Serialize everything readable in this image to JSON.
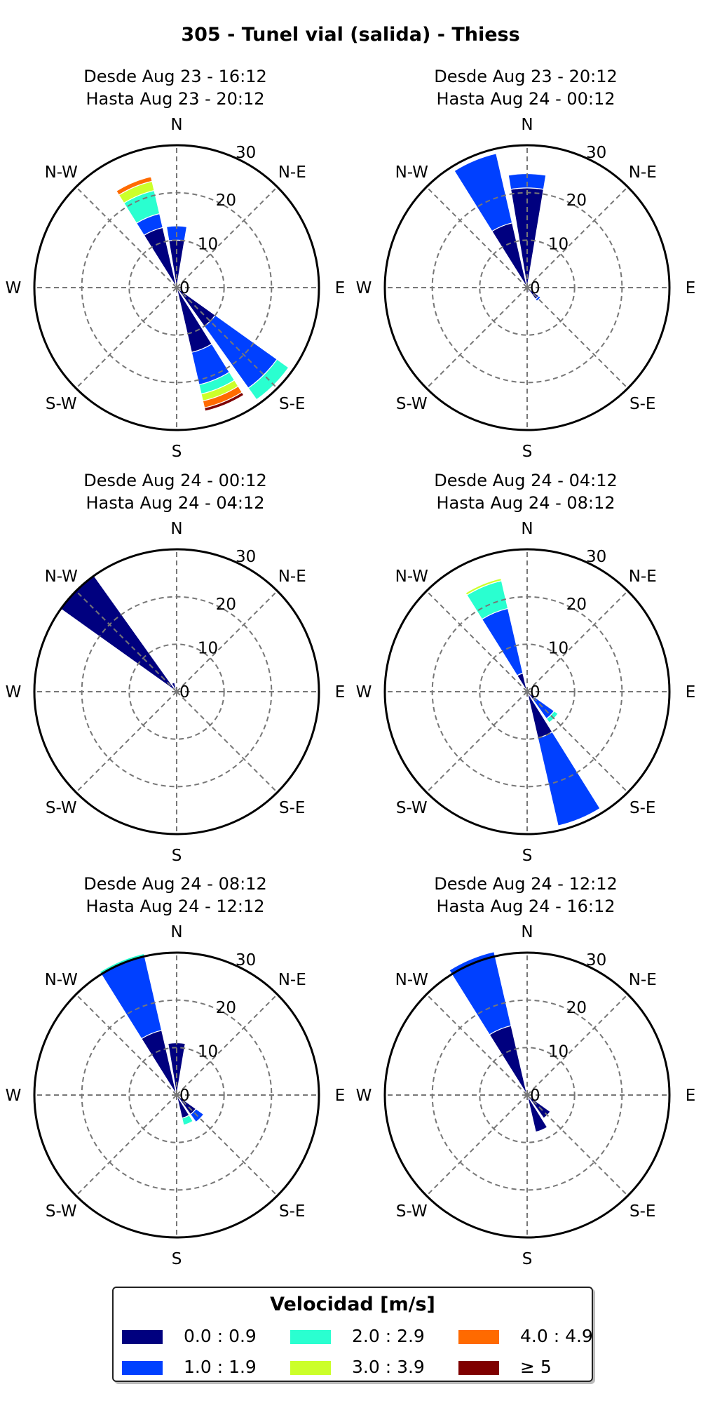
{
  "title": "305 - Tunel vial (salida) - Thiess",
  "chart_data": {
    "type": "polar-bar",
    "directions": [
      "N",
      "NNE",
      "NE",
      "ENE",
      "E",
      "ESE",
      "SE",
      "SSE",
      "S",
      "SSW",
      "SW",
      "WSW",
      "W",
      "WNW",
      "NW",
      "NNW"
    ],
    "direction_labels": [
      "N",
      "N-E",
      "E",
      "S-E",
      "S",
      "S-W",
      "W",
      "N-W"
    ],
    "radial_ticks": [
      0,
      10,
      20,
      30
    ],
    "rmax": 30,
    "bins": [
      "0.0 : 0.9",
      "1.0 : 1.9",
      "2.0 : 2.9",
      "3.0 : 3.9",
      "4.0 : 4.9",
      "≥ 5"
    ],
    "bin_colors": [
      "#00007f",
      "#0040ff",
      "#2affd0",
      "#ccff2a",
      "#ff6a00",
      "#7f0000"
    ],
    "panels": [
      {
        "subtitle_1": "Desde Aug 23 - 16:12",
        "subtitle_2": "Hasta Aug 23 - 20:12",
        "sectors": [
          {
            "dir": "N",
            "values": [
              10,
              3,
              0,
              0,
              0,
              0
            ]
          },
          {
            "dir": "NNE",
            "values": [
              0.5,
              0,
              0,
              0,
              0,
              0
            ]
          },
          {
            "dir": "NE",
            "values": [
              0.5,
              0,
              0,
              0,
              0,
              0
            ]
          },
          {
            "dir": "ENE",
            "values": [
              0.8,
              0.5,
              0,
              0,
              0,
              0
            ]
          },
          {
            "dir": "ESE",
            "values": [
              1,
              0,
              0,
              0,
              0,
              0
            ]
          },
          {
            "dir": "SE",
            "values": [
              10,
              16,
              3,
              0,
              0,
              0
            ]
          },
          {
            "dir": "SSE",
            "values": [
              14,
              7,
              2,
              1.5,
              1.5,
              0.7
            ]
          },
          {
            "dir": "NW",
            "values": [
              0.5,
              0,
              0,
              0,
              0,
              0
            ]
          },
          {
            "dir": "NNW",
            "values": [
              13,
              3,
              5,
              2,
              1,
              0
            ]
          }
        ]
      },
      {
        "subtitle_1": "Desde Aug 24 - 00:12",
        "subtitle_2": "Hasta Aug 24 - 04:12",
        "sectors": [
          {
            "dir": "NNW",
            "values": [
              2,
              0,
              0,
              0,
              0,
              0
            ]
          },
          {
            "dir": "NW",
            "values": [
              30,
              0,
              0,
              0,
              0,
              0
            ]
          }
        ]
      },
      {
        "subtitle_1": "Desde Aug 24 - 08:12",
        "subtitle_2": "Hasta Aug 24 - 12:12",
        "sectors": [
          {
            "dir": "N",
            "values": [
              11,
              0,
              0,
              0,
              0,
              0
            ]
          },
          {
            "dir": "NNW",
            "values": [
              14,
              16,
              0.6,
              0,
              0,
              0
            ]
          },
          {
            "dir": "SE",
            "values": [
              5,
              2,
              0,
              0,
              0,
              0
            ]
          },
          {
            "dir": "SSE",
            "values": [
              5,
              0,
              1.5,
              0,
              0,
              0
            ]
          },
          {
            "dir": "ESE",
            "values": [
              1,
              0,
              0,
              0,
              0,
              0
            ]
          }
        ]
      },
      {
        "subtitle_1": "Desde Aug 23 - 20:12",
        "subtitle_2": "Hasta Aug 24 - 00:12",
        "sectors": [
          {
            "dir": "N",
            "values": [
              21,
              3,
              0,
              0,
              0,
              0
            ]
          },
          {
            "dir": "NNW",
            "values": [
              14,
              15,
              0,
              0,
              0,
              0
            ]
          },
          {
            "dir": "SE",
            "values": [
              3,
              0.5,
              0,
              0,
              0,
              0
            ]
          },
          {
            "dir": "SSE",
            "values": [
              1,
              0,
              0,
              0,
              0,
              0
            ]
          }
        ]
      },
      {
        "subtitle_1": "Desde Aug 24 - 04:12",
        "subtitle_2": "Hasta Aug 24 - 08:12",
        "sectors": [
          {
            "dir": "NNW",
            "values": [
              4,
              14,
              6,
              0.5,
              0,
              0
            ]
          },
          {
            "dir": "SE",
            "values": [
              2,
              5,
              1,
              0,
              0,
              0
            ]
          },
          {
            "dir": "SSE",
            "values": [
              10,
              19,
              0,
              0,
              0,
              0
            ]
          }
        ]
      },
      {
        "subtitle_1": "Desde Aug 24 - 12:12",
        "subtitle_2": "Hasta Aug 24 - 16:12",
        "sectors": [
          {
            "dir": "NNW",
            "values": [
              15,
              16,
              0,
              0,
              0,
              0
            ]
          },
          {
            "dir": "SE",
            "values": [
              6,
              0,
              0,
              0,
              0,
              0
            ]
          },
          {
            "dir": "SSE",
            "values": [
              8,
              0,
              0,
              0,
              0,
              0
            ]
          }
        ]
      }
    ]
  },
  "legend": {
    "title": "Velocidad [m/s]",
    "items": [
      {
        "label": "0.0 : 0.9",
        "color": "#00007f"
      },
      {
        "label": "2.0 : 2.9",
        "color": "#2affd0"
      },
      {
        "label": "4.0 : 4.9",
        "color": "#ff6a00"
      },
      {
        "label": "1.0 : 1.9",
        "color": "#0040ff"
      },
      {
        "label": "3.0 : 3.9",
        "color": "#ccff2a"
      },
      {
        "label": "≥  5",
        "color": "#7f0000"
      }
    ]
  }
}
